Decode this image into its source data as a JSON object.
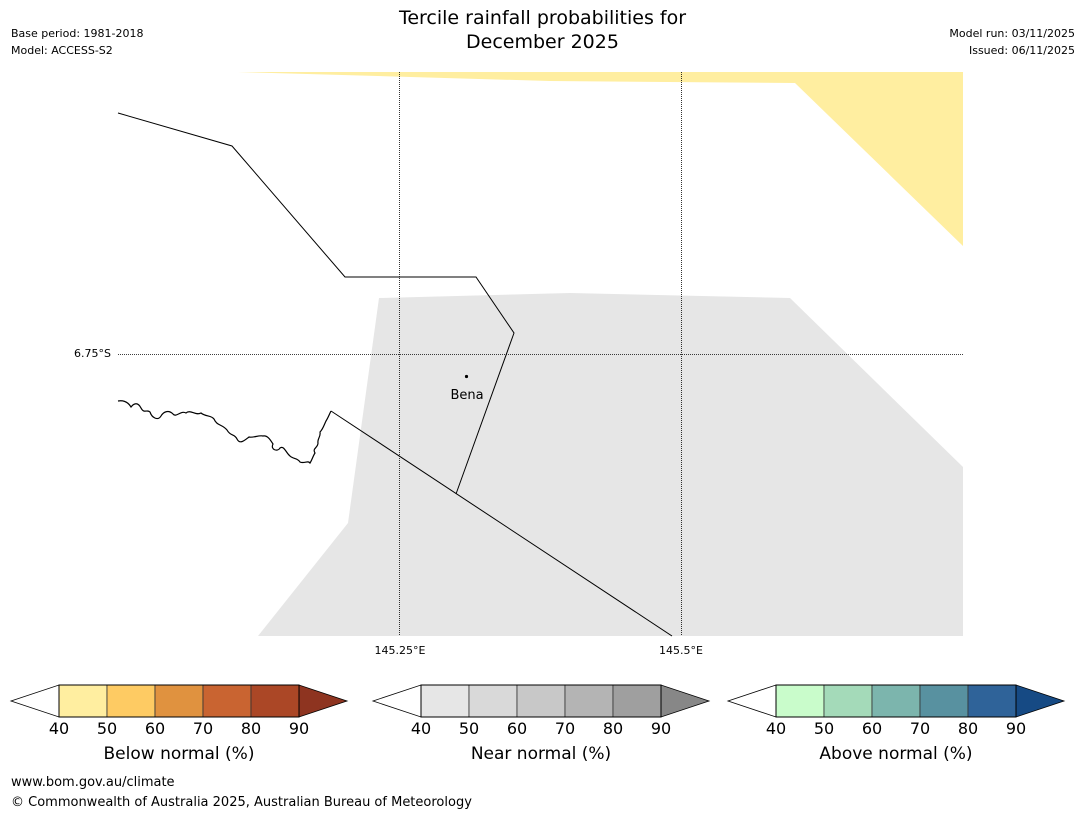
{
  "header": {
    "title_line1": "Tercile rainfall probabilities for",
    "title_line2": "December 2025",
    "base_period": "Base period: 1981-2018",
    "model": "Model: ACCESS-S2",
    "model_run": "Model run: 03/11/2025",
    "issued": "Issued: 06/11/2025"
  },
  "map": {
    "place_label": "Bena",
    "lat_label": "6.75°S",
    "lon_labels": [
      "145.25°E",
      "145.5°E"
    ]
  },
  "legends": [
    {
      "name": "below",
      "title": "Below normal (%)",
      "ticks": [
        "40",
        "50",
        "60",
        "70",
        "80",
        "90"
      ],
      "colors": [
        "#ffffff",
        "#ffeea0",
        "#fecb63",
        "#e0923f",
        "#c96431",
        "#ab4726",
        "#8e3420"
      ]
    },
    {
      "name": "near",
      "title": "Near normal (%)",
      "ticks": [
        "40",
        "50",
        "60",
        "70",
        "80",
        "90"
      ],
      "colors": [
        "#ffffff",
        "#e6e6e6",
        "#d9d9d9",
        "#c8c8c8",
        "#b4b4b4",
        "#9f9f9f",
        "#878787"
      ]
    },
    {
      "name": "above",
      "title": "Above normal (%)",
      "ticks": [
        "40",
        "50",
        "60",
        "70",
        "80",
        "90"
      ],
      "colors": [
        "#ffffff",
        "#c9fccb",
        "#a4dab9",
        "#7cb5ad",
        "#5891a0",
        "#2f6399",
        "#164a84"
      ]
    }
  ],
  "footer": {
    "url": "www.bom.gov.au/climate",
    "copyright": "© Commonwealth of Australia 2025, Australian Bureau of Meteorology"
  }
}
